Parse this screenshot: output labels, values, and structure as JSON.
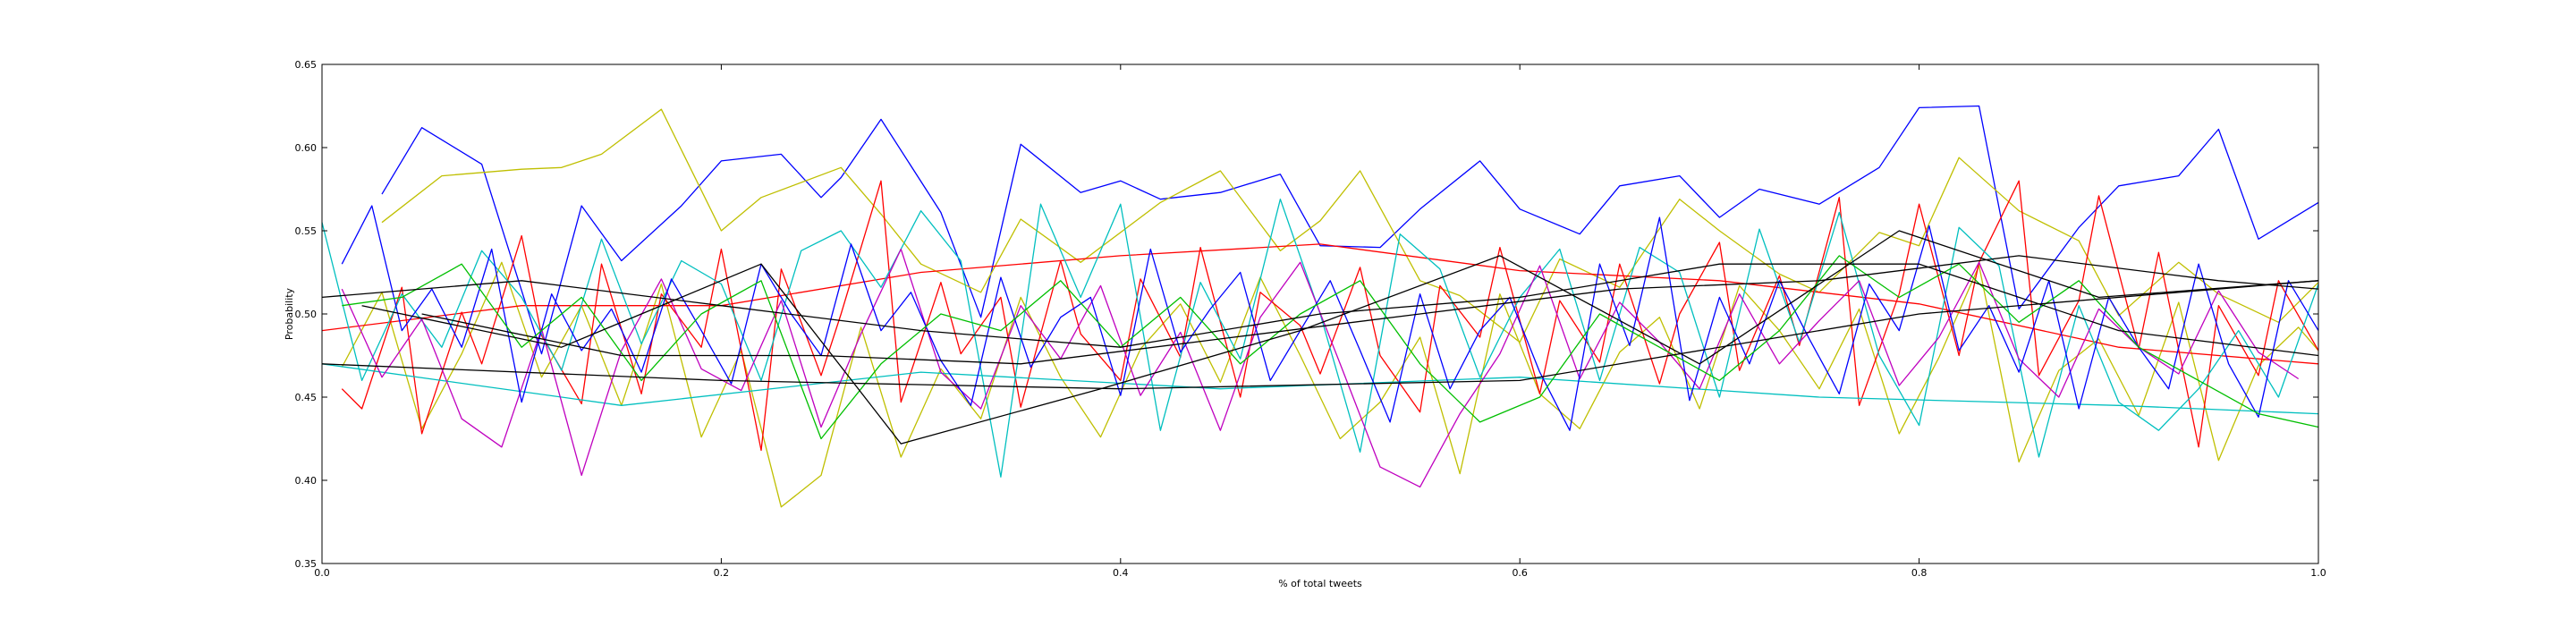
{
  "chart_data": {
    "type": "line",
    "title": "",
    "xlabel": "% of total tweets",
    "ylabel": "Probability",
    "xlim": [
      0.0,
      1.0
    ],
    "ylim": [
      0.35,
      0.65
    ],
    "xticks": [
      "0.0",
      "0.2",
      "0.4",
      "0.6",
      "0.8",
      "1.0"
    ],
    "yticks": [
      "0.35",
      "0.40",
      "0.45",
      "0.50",
      "0.55",
      "0.60",
      "0.65"
    ],
    "grid": false,
    "legend": "none",
    "series": [
      {
        "color": "#0000ff",
        "x": [
          0.03,
          0.05,
          0.08,
          0.11,
          0.13,
          0.15,
          0.18,
          0.2,
          0.23,
          0.25,
          0.26,
          0.28,
          0.31,
          0.33,
          0.35,
          0.38,
          0.4,
          0.42,
          0.45,
          0.48,
          0.5,
          0.53,
          0.55,
          0.58,
          0.6,
          0.63,
          0.65,
          0.68,
          0.7,
          0.72,
          0.75,
          0.78,
          0.8,
          0.83,
          0.85,
          0.88,
          0.9,
          0.93,
          0.95,
          0.97,
          1.0
        ],
        "y": [
          0.572,
          0.612,
          0.59,
          0.476,
          0.565,
          0.532,
          0.565,
          0.592,
          0.596,
          0.57,
          0.582,
          0.617,
          0.561,
          0.498,
          0.602,
          0.573,
          0.58,
          0.569,
          0.573,
          0.584,
          0.541,
          0.54,
          0.563,
          0.592,
          0.563,
          0.548,
          0.577,
          0.583,
          0.558,
          0.575,
          0.566,
          0.588,
          0.624,
          0.625,
          0.503,
          0.552,
          0.577,
          0.583,
          0.611,
          0.545,
          0.567
        ]
      },
      {
        "color": "#bfbf00",
        "x": [
          0.03,
          0.06,
          0.1,
          0.12,
          0.14,
          0.17,
          0.2,
          0.22,
          0.26,
          0.28,
          0.3,
          0.33,
          0.35,
          0.38,
          0.42,
          0.45,
          0.48,
          0.5,
          0.52,
          0.55,
          0.57,
          0.6,
          0.62,
          0.65,
          0.68,
          0.7,
          0.73,
          0.75,
          0.78,
          0.8,
          0.82,
          0.85,
          0.88,
          0.9,
          0.93,
          0.95,
          0.98,
          1.0
        ],
        "y": [
          0.555,
          0.583,
          0.587,
          0.588,
          0.596,
          0.623,
          0.55,
          0.57,
          0.588,
          0.56,
          0.53,
          0.513,
          0.557,
          0.531,
          0.567,
          0.586,
          0.538,
          0.556,
          0.586,
          0.52,
          0.511,
          0.483,
          0.533,
          0.516,
          0.569,
          0.55,
          0.524,
          0.513,
          0.549,
          0.541,
          0.594,
          0.562,
          0.544,
          0.499,
          0.531,
          0.512,
          0.495,
          0.519
        ]
      },
      {
        "color": "#bfbf00",
        "x": [
          0.01,
          0.03,
          0.05,
          0.07,
          0.09,
          0.11,
          0.13,
          0.15,
          0.17,
          0.19,
          0.21,
          0.23,
          0.25,
          0.27,
          0.29,
          0.31,
          0.33,
          0.35,
          0.37,
          0.39,
          0.41,
          0.43,
          0.45,
          0.47,
          0.49,
          0.51,
          0.53,
          0.55,
          0.57,
          0.59,
          0.61,
          0.63,
          0.65,
          0.67,
          0.69,
          0.71,
          0.73,
          0.75,
          0.77,
          0.79,
          0.81,
          0.83,
          0.85,
          0.87,
          0.89,
          0.91,
          0.93,
          0.95,
          0.97,
          0.99,
          1.0
        ],
        "y": [
          0.468,
          0.513,
          0.431,
          0.476,
          0.531,
          0.462,
          0.505,
          0.445,
          0.518,
          0.426,
          0.478,
          0.384,
          0.403,
          0.492,
          0.414,
          0.467,
          0.437,
          0.51,
          0.462,
          0.426,
          0.479,
          0.506,
          0.459,
          0.522,
          0.475,
          0.425,
          0.447,
          0.486,
          0.404,
          0.512,
          0.452,
          0.431,
          0.477,
          0.498,
          0.443,
          0.517,
          0.49,
          0.455,
          0.503,
          0.428,
          0.474,
          0.529,
          0.411,
          0.466,
          0.485,
          0.439,
          0.507,
          0.412,
          0.469,
          0.492,
          0.478
        ]
      },
      {
        "color": "#ff0000",
        "x": [
          0.01,
          0.02,
          0.04,
          0.05,
          0.07,
          0.08,
          0.1,
          0.11,
          0.13,
          0.14,
          0.16,
          0.17,
          0.19,
          0.2,
          0.22,
          0.23,
          0.25,
          0.26,
          0.28,
          0.29,
          0.31,
          0.32,
          0.34,
          0.35,
          0.37,
          0.38,
          0.4,
          0.41,
          0.43,
          0.44,
          0.46,
          0.47,
          0.49,
          0.5,
          0.52,
          0.53,
          0.55,
          0.56,
          0.58,
          0.59,
          0.61,
          0.62,
          0.64,
          0.65,
          0.67,
          0.68,
          0.7,
          0.71,
          0.73,
          0.74,
          0.76,
          0.77,
          0.79,
          0.8,
          0.82,
          0.83,
          0.85,
          0.86,
          0.88,
          0.89,
          0.91,
          0.92,
          0.94,
          0.95,
          0.97,
          0.98,
          1.0
        ],
        "y": [
          0.455,
          0.443,
          0.516,
          0.428,
          0.501,
          0.47,
          0.547,
          0.487,
          0.446,
          0.53,
          0.452,
          0.512,
          0.48,
          0.539,
          0.418,
          0.527,
          0.463,
          0.5,
          0.58,
          0.447,
          0.519,
          0.476,
          0.51,
          0.444,
          0.532,
          0.488,
          0.46,
          0.521,
          0.474,
          0.54,
          0.45,
          0.513,
          0.493,
          0.464,
          0.528,
          0.475,
          0.441,
          0.517,
          0.486,
          0.54,
          0.452,
          0.508,
          0.471,
          0.53,
          0.458,
          0.5,
          0.543,
          0.466,
          0.523,
          0.481,
          0.57,
          0.445,
          0.512,
          0.566,
          0.475,
          0.531,
          0.58,
          0.463,
          0.508,
          0.571,
          0.479,
          0.537,
          0.42,
          0.505,
          0.463,
          0.52,
          0.478
        ]
      },
      {
        "color": "#ff0000",
        "x": [
          0.0,
          0.1,
          0.2,
          0.3,
          0.4,
          0.5,
          0.6,
          0.7,
          0.8,
          0.9,
          1.0
        ],
        "y": [
          0.49,
          0.505,
          0.505,
          0.525,
          0.535,
          0.542,
          0.526,
          0.52,
          0.506,
          0.48,
          0.47
        ]
      },
      {
        "color": "#00bfbf",
        "x": [
          0.0,
          0.02,
          0.04,
          0.06,
          0.08,
          0.1,
          0.12,
          0.14,
          0.16,
          0.18,
          0.2,
          0.22,
          0.24,
          0.26,
          0.28,
          0.3,
          0.32,
          0.34,
          0.36,
          0.38,
          0.4,
          0.42,
          0.44,
          0.46,
          0.48,
          0.5,
          0.52,
          0.54,
          0.56,
          0.58,
          0.6,
          0.62,
          0.64,
          0.66,
          0.68,
          0.7,
          0.72,
          0.74,
          0.76,
          0.78,
          0.8,
          0.82,
          0.84,
          0.86,
          0.88,
          0.9,
          0.92,
          0.94,
          0.96,
          0.98,
          1.0
        ],
        "y": [
          0.555,
          0.46,
          0.512,
          0.48,
          0.538,
          0.51,
          0.466,
          0.545,
          0.482,
          0.532,
          0.518,
          0.46,
          0.538,
          0.55,
          0.516,
          0.562,
          0.532,
          0.402,
          0.566,
          0.51,
          0.566,
          0.43,
          0.519,
          0.473,
          0.569,
          0.5,
          0.417,
          0.548,
          0.527,
          0.462,
          0.51,
          0.539,
          0.46,
          0.54,
          0.525,
          0.45,
          0.551,
          0.483,
          0.561,
          0.475,
          0.433,
          0.552,
          0.529,
          0.414,
          0.505,
          0.447,
          0.43,
          0.455,
          0.49,
          0.45,
          0.518
        ]
      },
      {
        "color": "#00bfbf",
        "x": [
          0.0,
          0.15,
          0.3,
          0.45,
          0.6,
          0.75,
          0.9,
          1.0
        ],
        "y": [
          0.47,
          0.445,
          0.465,
          0.455,
          0.462,
          0.45,
          0.445,
          0.44
        ]
      },
      {
        "color": "#bf00bf",
        "x": [
          0.01,
          0.03,
          0.05,
          0.07,
          0.09,
          0.11,
          0.13,
          0.15,
          0.17,
          0.19,
          0.21,
          0.23,
          0.25,
          0.27,
          0.29,
          0.31,
          0.33,
          0.35,
          0.37,
          0.39,
          0.41,
          0.43,
          0.45,
          0.47,
          0.49,
          0.51,
          0.53,
          0.55,
          0.57,
          0.59,
          0.61,
          0.63,
          0.65,
          0.67,
          0.69,
          0.71,
          0.73,
          0.75,
          0.77,
          0.79,
          0.81,
          0.83,
          0.85,
          0.87,
          0.89,
          0.91,
          0.93,
          0.95,
          0.97,
          0.99
        ],
        "y": [
          0.515,
          0.462,
          0.497,
          0.437,
          0.42,
          0.491,
          0.403,
          0.478,
          0.521,
          0.467,
          0.454,
          0.508,
          0.432,
          0.488,
          0.539,
          0.465,
          0.443,
          0.505,
          0.473,
          0.517,
          0.451,
          0.489,
          0.43,
          0.498,
          0.531,
          0.47,
          0.408,
          0.396,
          0.44,
          0.476,
          0.529,
          0.461,
          0.507,
          0.483,
          0.455,
          0.512,
          0.47,
          0.496,
          0.52,
          0.457,
          0.486,
          0.531,
          0.473,
          0.45,
          0.503,
          0.48,
          0.464,
          0.514,
          0.477,
          0.461
        ]
      },
      {
        "color": "#0000ff",
        "x": [
          0.01,
          0.025,
          0.04,
          0.055,
          0.07,
          0.085,
          0.1,
          0.115,
          0.13,
          0.145,
          0.16,
          0.175,
          0.19,
          0.205,
          0.22,
          0.235,
          0.25,
          0.265,
          0.28,
          0.295,
          0.31,
          0.325,
          0.34,
          0.355,
          0.37,
          0.385,
          0.4,
          0.415,
          0.43,
          0.445,
          0.46,
          0.475,
          0.49,
          0.505,
          0.52,
          0.535,
          0.55,
          0.565,
          0.58,
          0.595,
          0.61,
          0.625,
          0.64,
          0.655,
          0.67,
          0.685,
          0.7,
          0.715,
          0.73,
          0.745,
          0.76,
          0.775,
          0.79,
          0.805,
          0.82,
          0.835,
          0.85,
          0.865,
          0.88,
          0.895,
          0.91,
          0.925,
          0.94,
          0.955,
          0.97,
          0.985,
          1.0
        ],
        "y": [
          0.53,
          0.565,
          0.49,
          0.515,
          0.48,
          0.539,
          0.447,
          0.512,
          0.478,
          0.503,
          0.465,
          0.521,
          0.49,
          0.458,
          0.53,
          0.5,
          0.475,
          0.542,
          0.49,
          0.513,
          0.472,
          0.445,
          0.522,
          0.468,
          0.498,
          0.51,
          0.451,
          0.539,
          0.477,
          0.503,
          0.525,
          0.46,
          0.49,
          0.52,
          0.478,
          0.435,
          0.512,
          0.455,
          0.49,
          0.51,
          0.465,
          0.43,
          0.53,
          0.481,
          0.558,
          0.448,
          0.51,
          0.47,
          0.52,
          0.485,
          0.452,
          0.518,
          0.49,
          0.553,
          0.478,
          0.505,
          0.465,
          0.52,
          0.443,
          0.51,
          0.48,
          0.455,
          0.53,
          0.47,
          0.438,
          0.52,
          0.49
        ]
      },
      {
        "color": "#00bf00",
        "x": [
          0.01,
          0.04,
          0.07,
          0.1,
          0.13,
          0.16,
          0.19,
          0.22,
          0.25,
          0.28,
          0.31,
          0.34,
          0.37,
          0.4,
          0.43,
          0.46,
          0.49,
          0.52,
          0.55,
          0.58,
          0.61,
          0.64,
          0.67,
          0.7,
          0.73,
          0.76,
          0.79,
          0.82,
          0.85,
          0.88,
          0.91,
          0.94,
          0.97,
          1.0
        ],
        "y": [
          0.505,
          0.51,
          0.53,
          0.48,
          0.51,
          0.46,
          0.5,
          0.52,
          0.425,
          0.47,
          0.5,
          0.49,
          0.52,
          0.48,
          0.51,
          0.47,
          0.5,
          0.52,
          0.47,
          0.435,
          0.45,
          0.5,
          0.48,
          0.46,
          0.49,
          0.535,
          0.51,
          0.53,
          0.495,
          0.52,
          0.48,
          0.46,
          0.44,
          0.432
        ]
      },
      {
        "color": "#000000",
        "x": [
          0.0,
          0.1,
          0.2,
          0.3,
          0.4,
          0.5,
          0.6,
          0.7,
          0.8,
          0.9,
          1.0
        ],
        "y": [
          0.51,
          0.52,
          0.505,
          0.49,
          0.48,
          0.5,
          0.51,
          0.53,
          0.53,
          0.49,
          0.475
        ]
      },
      {
        "color": "#000000",
        "x": [
          0.02,
          0.12,
          0.22,
          0.29,
          0.39,
          0.49,
          0.59,
          0.69,
          0.79,
          0.89,
          1.0
        ],
        "y": [
          0.505,
          0.48,
          0.53,
          0.422,
          0.455,
          0.49,
          0.535,
          0.47,
          0.55,
          0.51,
          0.52
        ]
      },
      {
        "color": "#000000",
        "x": [
          0.0,
          0.2,
          0.4,
          0.6,
          0.8,
          1.0
        ],
        "y": [
          0.47,
          0.46,
          0.455,
          0.46,
          0.5,
          0.52
        ]
      },
      {
        "color": "#000000",
        "x": [
          0.05,
          0.15,
          0.25,
          0.35,
          0.45,
          0.55,
          0.65,
          0.75,
          0.85,
          0.95,
          1.0
        ],
        "y": [
          0.5,
          0.475,
          0.475,
          0.47,
          0.485,
          0.5,
          0.515,
          0.52,
          0.535,
          0.52,
          0.515
        ]
      }
    ]
  }
}
